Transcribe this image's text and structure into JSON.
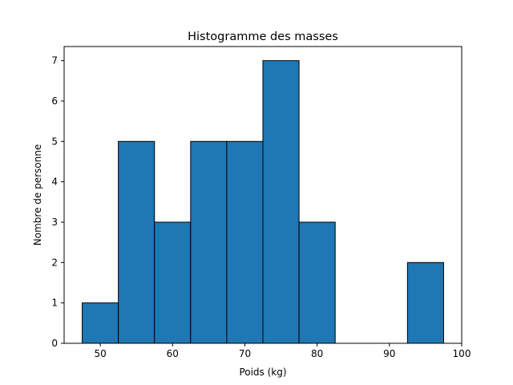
{
  "chart_data": {
    "type": "bar",
    "title": "Histogramme des masses",
    "xlabel": "Poids (kg)",
    "ylabel": "Nombre de personne",
    "bins": [
      {
        "start": 47.5,
        "end": 52.5,
        "count": 1
      },
      {
        "start": 52.5,
        "end": 57.5,
        "count": 5
      },
      {
        "start": 57.5,
        "end": 62.5,
        "count": 3
      },
      {
        "start": 62.5,
        "end": 67.5,
        "count": 5
      },
      {
        "start": 67.5,
        "end": 72.5,
        "count": 5
      },
      {
        "start": 72.5,
        "end": 77.5,
        "count": 7
      },
      {
        "start": 77.5,
        "end": 82.5,
        "count": 3
      },
      {
        "start": 82.5,
        "end": 87.5,
        "count": 0
      },
      {
        "start": 87.5,
        "end": 92.5,
        "count": 0
      },
      {
        "start": 92.5,
        "end": 97.5,
        "count": 2
      }
    ],
    "xlim": [
      45,
      100
    ],
    "ylim": [
      0,
      7.35
    ],
    "xticks": [
      50,
      60,
      70,
      80,
      90,
      100
    ],
    "yticks": [
      0,
      1,
      2,
      3,
      4,
      5,
      6,
      7
    ],
    "grid": false,
    "colors": {
      "bar_fill": "#1f77b4",
      "bar_edge": "#000000"
    }
  }
}
